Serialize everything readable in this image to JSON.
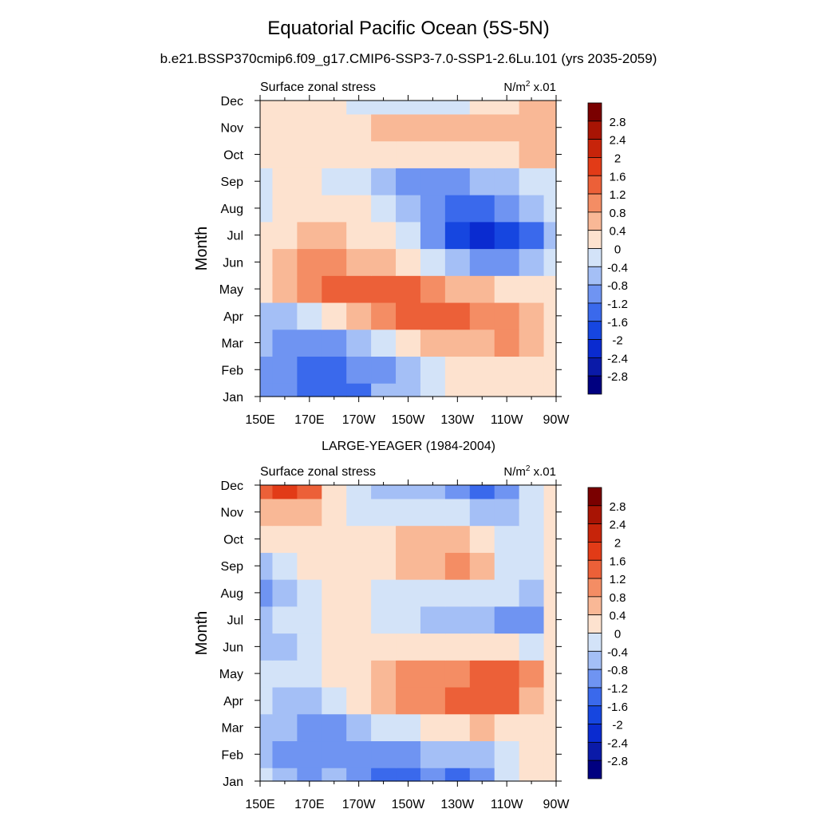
{
  "title": "Equatorial Pacific Ocean (5S-5N)",
  "subtitle": "b.e21.BSSP370cmip6.f09_g17.CMIP6-SSP3-7.0-SSP1-2.6Lu.101 (yrs 2035-2059)",
  "chart_data": [
    {
      "type": "heatmap",
      "panel_title": "",
      "left_label": "Surface zonal stress",
      "units_prefix": "N/m",
      "units_sup": "2",
      "units_suffix": " x.01",
      "ylabel": "Month",
      "x_ticks": [
        "150E",
        "170E",
        "170W",
        "150W",
        "130W",
        "110W",
        "90W"
      ],
      "y_ticks": [
        "Jan",
        "Feb",
        "Mar",
        "Apr",
        "May",
        "Jun",
        "Jul",
        "Aug",
        "Sep",
        "Oct",
        "Nov",
        "Dec"
      ],
      "colorbar_labels": [
        "2.8",
        "2.4",
        "2",
        "1.6",
        "1.2",
        "0.8",
        "0.4",
        "0",
        "-0.4",
        "-0.8",
        "-1.2",
        "-1.6",
        "-2",
        "-2.4",
        "-2.8"
      ],
      "xlim": [
        150,
        270
      ],
      "ylim": [
        "Jan",
        "Dec"
      ],
      "values": [
        [
          -0.8,
          -1.0,
          -1.4,
          -1.5,
          -1.2,
          -0.7,
          -0.4,
          -0.3,
          0.1,
          0.3,
          0.4,
          0.3,
          0.1
        ],
        [
          -0.9,
          -1.1,
          -1.4,
          -1.4,
          -1.1,
          -0.8,
          -0.5,
          -0.2,
          0.2,
          0.4,
          0.4,
          0.3,
          0.1
        ],
        [
          -0.7,
          -0.8,
          -0.9,
          -0.9,
          -0.6,
          -0.3,
          0.3,
          0.6,
          0.7,
          0.8,
          0.9,
          0.8,
          0.2
        ],
        [
          -0.5,
          -0.4,
          -0.2,
          0.3,
          0.5,
          0.9,
          1.3,
          1.5,
          1.2,
          1.0,
          1.0,
          0.8,
          0.3
        ],
        [
          0.1,
          0.6,
          0.9,
          1.2,
          1.3,
          1.4,
          1.4,
          1.1,
          0.8,
          0.6,
          0.4,
          0.3,
          0.1
        ],
        [
          0.2,
          0.6,
          0.9,
          0.9,
          0.8,
          0.5,
          0.2,
          -0.2,
          -0.6,
          -0.9,
          -0.9,
          -0.7,
          -0.3
        ],
        [
          0.1,
          0.3,
          0.5,
          0.5,
          0.4,
          0.1,
          -0.3,
          -0.8,
          -1.6,
          -2.1,
          -1.9,
          -1.2,
          -0.5
        ],
        [
          -0.1,
          0.1,
          0.2,
          0.2,
          0.1,
          -0.2,
          -0.5,
          -1.0,
          -1.2,
          -1.2,
          -0.9,
          -0.6,
          -0.3
        ],
        [
          -0.1,
          0.1,
          0.1,
          0.0,
          -0.2,
          -0.4,
          -0.8,
          -0.9,
          -0.8,
          -0.7,
          -0.5,
          -0.3,
          -0.1
        ],
        [
          0.3,
          0.2,
          0.2,
          0.3,
          0.3,
          0.3,
          0.3,
          0.2,
          0.1,
          0.2,
          0.4,
          0.5,
          0.5
        ],
        [
          0.2,
          0.4,
          0.3,
          0.4,
          0.4,
          0.5,
          0.5,
          0.5,
          0.5,
          0.6,
          0.6,
          0.6,
          0.6
        ],
        [
          0.3,
          0.2,
          0.2,
          0.1,
          -0.1,
          -0.2,
          -0.3,
          -0.3,
          -0.1,
          0.2,
          0.4,
          0.5,
          0.6
        ]
      ]
    },
    {
      "type": "heatmap",
      "panel_title": "LARGE-YEAGER (1984-2004)",
      "left_label": "Surface zonal stress",
      "units_prefix": "N/m",
      "units_sup": "2",
      "units_suffix": " x.01",
      "ylabel": "Month",
      "x_ticks": [
        "150E",
        "170E",
        "170W",
        "150W",
        "130W",
        "110W",
        "90W"
      ],
      "y_ticks": [
        "Jan",
        "Feb",
        "Mar",
        "Apr",
        "May",
        "Jun",
        "Jul",
        "Aug",
        "Sep",
        "Oct",
        "Nov",
        "Dec"
      ],
      "colorbar_labels": [
        "2.8",
        "2.4",
        "2",
        "1.6",
        "1.2",
        "0.8",
        "0.4",
        "0",
        "-0.4",
        "-0.8",
        "-1.2",
        "-1.6",
        "-2",
        "-2.4",
        "-2.8"
      ],
      "xlim": [
        150,
        270
      ],
      "ylim": [
        "Jan",
        "Dec"
      ],
      "values": [
        [
          -0.3,
          -0.6,
          -0.8,
          -0.7,
          -0.9,
          -1.3,
          -1.2,
          -1.0,
          -1.3,
          -0.8,
          -0.3,
          0.1,
          0.2
        ],
        [
          -0.4,
          -0.8,
          -1.0,
          -0.9,
          -0.9,
          -1.0,
          -0.8,
          -0.7,
          -0.6,
          -0.4,
          -0.1,
          0.2,
          0.3
        ],
        [
          -0.4,
          -0.7,
          -1.0,
          -0.9,
          -0.6,
          -0.3,
          -0.1,
          0.2,
          0.4,
          0.5,
          0.3,
          0.2,
          0.3
        ],
        [
          -0.2,
          -0.4,
          -0.5,
          -0.2,
          0.2,
          0.5,
          0.9,
          1.0,
          1.3,
          1.5,
          1.4,
          0.8,
          0.3
        ],
        [
          -0.3,
          -0.3,
          -0.2,
          0.1,
          0.4,
          0.8,
          1.0,
          1.0,
          1.1,
          1.2,
          1.4,
          0.9,
          0.3
        ],
        [
          -0.4,
          -0.4,
          -0.2,
          0.1,
          0.3,
          0.3,
          0.3,
          0.2,
          0.2,
          0.1,
          0.1,
          0.0,
          0.2
        ],
        [
          -0.4,
          -0.3,
          -0.1,
          0.1,
          0.1,
          0.0,
          -0.2,
          -0.4,
          -0.5,
          -0.6,
          -0.9,
          -0.9,
          0.1
        ],
        [
          -0.8,
          -0.4,
          -0.1,
          0.1,
          0.2,
          0.0,
          -0.1,
          -0.2,
          -0.1,
          -0.1,
          -0.3,
          -0.4,
          0.1
        ],
        [
          -0.5,
          -0.2,
          0.1,
          0.1,
          0.3,
          0.4,
          0.6,
          0.7,
          0.9,
          0.5,
          -0.3,
          -0.3,
          0.1
        ],
        [
          0.3,
          0.3,
          0.2,
          0.1,
          0.1,
          0.4,
          0.6,
          0.5,
          0.5,
          0.4,
          0.0,
          -0.2,
          0.2
        ],
        [
          0.8,
          0.8,
          0.6,
          0.2,
          0.0,
          -0.2,
          -0.1,
          -0.1,
          -0.3,
          -0.4,
          -0.4,
          -0.3,
          0.3
        ],
        [
          1.3,
          1.8,
          1.2,
          0.4,
          -0.3,
          -0.6,
          -0.7,
          -0.7,
          -0.8,
          -1.2,
          -0.9,
          -0.3,
          0.4
        ]
      ]
    }
  ]
}
